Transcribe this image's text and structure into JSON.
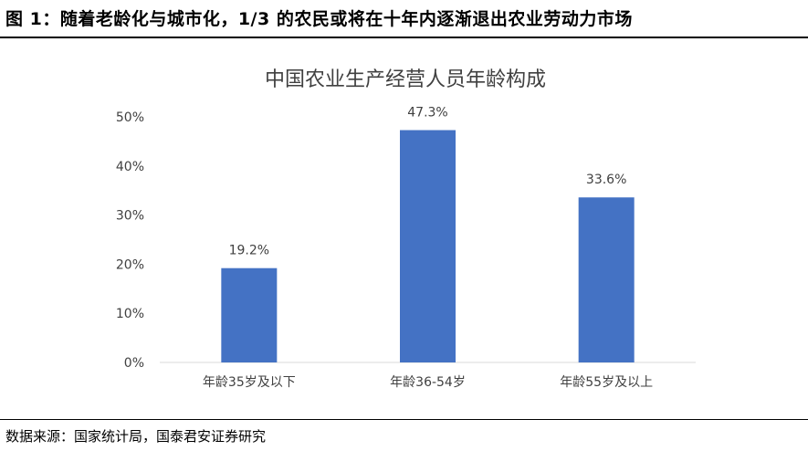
{
  "figure_title": "图 1：随着老龄化与城市化，1/3 的农民或将在十年内逐渐退出农业劳动力市场",
  "source_note": "数据来源：国家统计局，国泰君安证券研究",
  "chart_data": {
    "type": "bar",
    "title": "中国农业生产经营人员年龄构成",
    "categories": [
      "年龄35岁及以下",
      "年龄36-54岁",
      "年龄55岁及以上"
    ],
    "values": [
      19.2,
      47.3,
      33.6
    ],
    "data_labels": [
      "19.2%",
      "47.3%",
      "33.6%"
    ],
    "y_ticks": [
      "0%",
      "10%",
      "20%",
      "30%",
      "40%",
      "50%"
    ],
    "ylim": [
      0,
      50
    ],
    "xlabel": "",
    "ylabel": "",
    "grid": false,
    "legend": "none",
    "bar_color": "#4472C4"
  }
}
